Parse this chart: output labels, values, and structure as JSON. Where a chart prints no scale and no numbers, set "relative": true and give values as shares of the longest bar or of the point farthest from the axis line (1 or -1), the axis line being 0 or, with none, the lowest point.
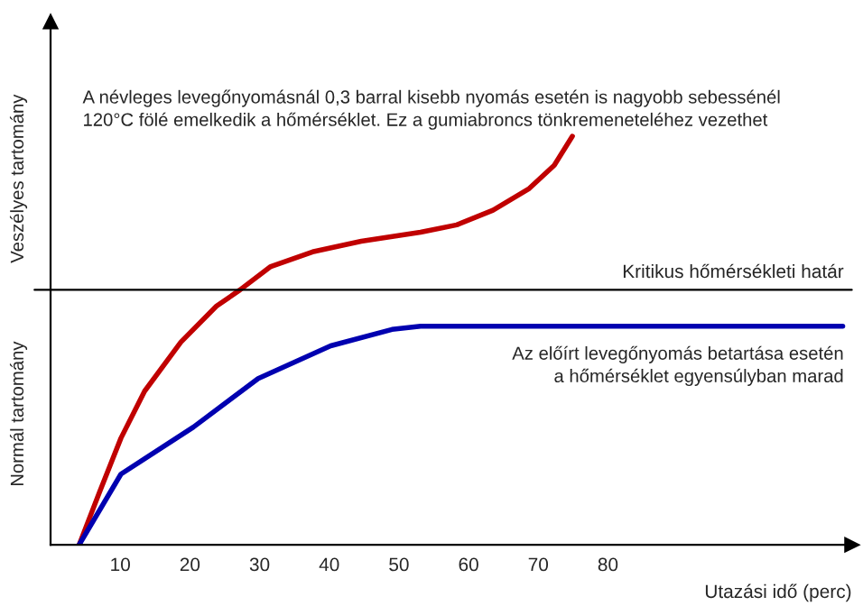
{
  "chart_data": {
    "type": "line",
    "relative": true,
    "xlabel": "Utazási idő (perc)",
    "xlim": [
      0,
      115
    ],
    "xticks": [
      10,
      20,
      30,
      40,
      50,
      60,
      70,
      80
    ],
    "series": [
      {
        "color": "#c00000",
        "x": [
          4.1,
          7.0,
          10.1,
          13.5,
          18.7,
          23.8,
          27.2,
          31.6,
          37.6,
          44.6,
          53.1,
          58.3,
          63.5,
          68.7,
          72.3,
          74.9
        ],
        "values": [
          0,
          0.128,
          0.261,
          0.376,
          0.496,
          0.584,
          0.624,
          0.681,
          0.717,
          0.743,
          0.765,
          0.783,
          0.819,
          0.872,
          0.929,
          1.0
        ]
      },
      {
        "color": "#0000b0",
        "x": [
          4.1,
          10.1,
          20.5,
          29.8,
          40.2,
          49.0,
          53.1,
          113.7
        ],
        "values": [
          0,
          0.173,
          0.288,
          0.407,
          0.487,
          0.527,
          0.535,
          0.535
        ]
      }
    ],
    "ref_lines": [
      {
        "axis": "y",
        "value": 0.624,
        "label": "Kritikus hőmérsékleti határ",
        "color": "#000000"
      }
    ],
    "annotations": [
      "Veszélyes tartomány",
      "Normál tartomány",
      "A névleges levegőnyomásnál 0,3 barral kisebb nyomás esetén is nagyobb sebessénél\n120°C fölé emelkedik a hőmérséklet. Ez a gumiabroncs tönkremeneteléhez vezethet",
      "Az előírt levegőnyomás betartása esetén\na hőmérséklet egyensúlyban marad"
    ],
    "grid": false,
    "legend": false,
    "marker": "none",
    "line_style": "solid"
  }
}
